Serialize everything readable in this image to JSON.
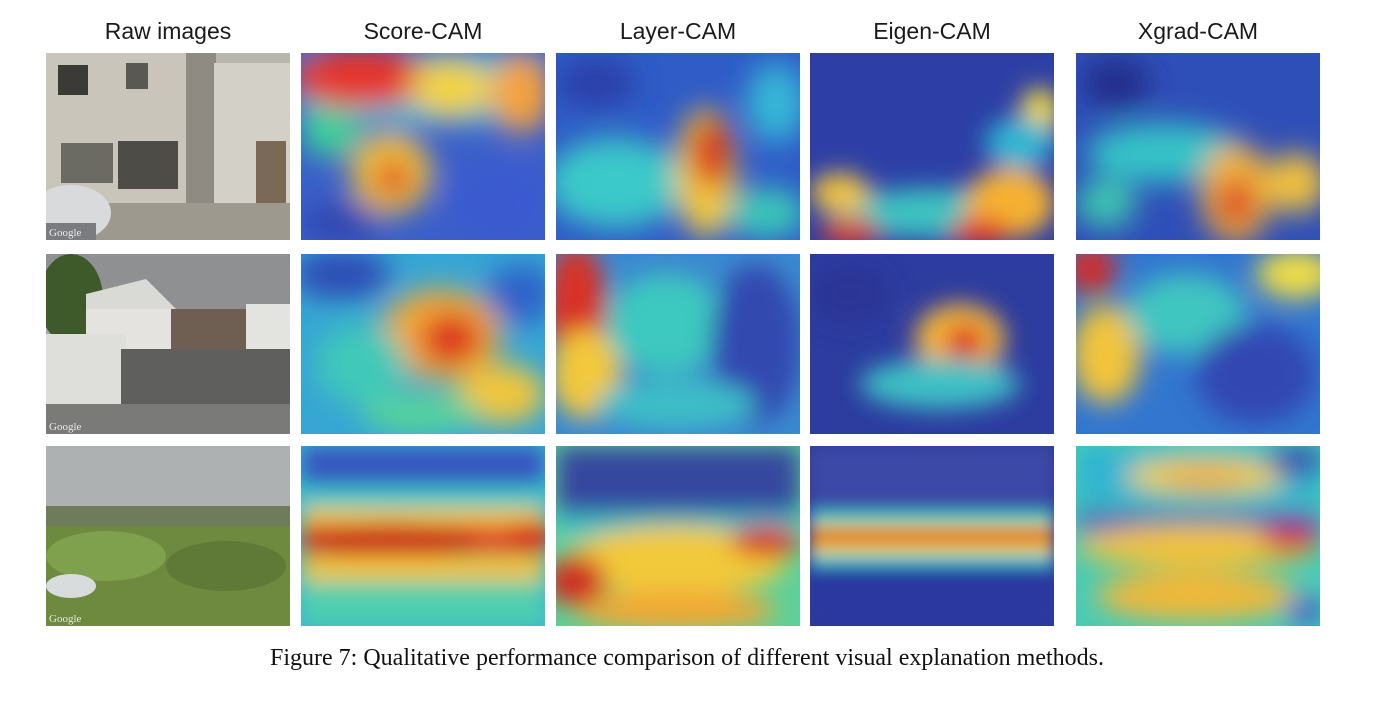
{
  "columns": [
    {
      "label": "Raw images"
    },
    {
      "label": "Score-CAM"
    },
    {
      "label": "Layer-CAM"
    },
    {
      "label": "Eigen-CAM"
    },
    {
      "label": "Xgrad-CAM"
    }
  ],
  "rows": [
    {
      "scene": "street-alley"
    },
    {
      "scene": "houses-wall"
    },
    {
      "scene": "vegetation-field"
    }
  ],
  "watermark_text": "Google",
  "caption": "Figure 7: Qualitative performance comparison of different visual explanation methods."
}
